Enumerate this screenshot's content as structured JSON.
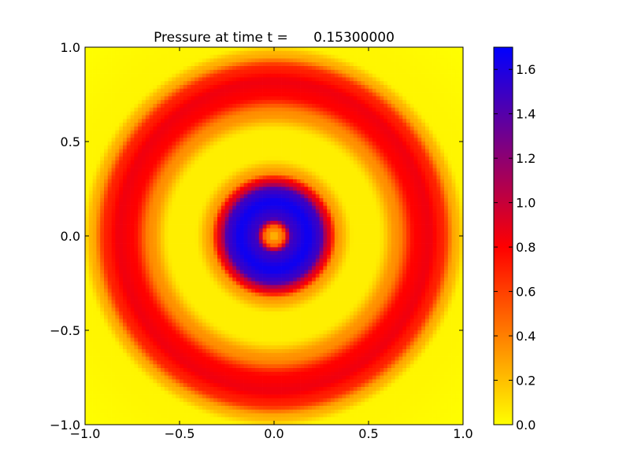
{
  "chart_data": {
    "type": "heatmap",
    "title": "Pressure at time t =      0.15300000",
    "xlabel": "",
    "ylabel": "",
    "xlim": [
      -1.0,
      1.0
    ],
    "ylim": [
      -1.0,
      1.0
    ],
    "x_ticks": [
      {
        "value": -1.0,
        "label": "−1.0"
      },
      {
        "value": -0.5,
        "label": "−0.5"
      },
      {
        "value": 0.0,
        "label": "0.0"
      },
      {
        "value": 0.5,
        "label": "0.5"
      },
      {
        "value": 1.0,
        "label": "1.0"
      }
    ],
    "y_ticks": [
      {
        "value": -1.0,
        "label": "−1.0"
      },
      {
        "value": -0.5,
        "label": "−0.5"
      },
      {
        "value": 0.0,
        "label": "0.0"
      },
      {
        "value": 0.5,
        "label": "0.5"
      },
      {
        "value": 1.0,
        "label": "1.0"
      }
    ],
    "grid": false,
    "grid_resolution": 100,
    "field": {
      "description_type": "radial",
      "radial_profile": [
        {
          "r": 0.0,
          "value": 0.2
        },
        {
          "r": 0.04,
          "value": 0.4
        },
        {
          "r": 0.1,
          "value": 1.5
        },
        {
          "r": 0.18,
          "value": 1.65
        },
        {
          "r": 0.24,
          "value": 1.5
        },
        {
          "r": 0.29,
          "value": 0.9
        },
        {
          "r": 0.34,
          "value": 0.3
        },
        {
          "r": 0.42,
          "value": 0.05
        },
        {
          "r": 0.55,
          "value": 0.05
        },
        {
          "r": 0.65,
          "value": 0.35
        },
        {
          "r": 0.75,
          "value": 0.8
        },
        {
          "r": 0.82,
          "value": 0.85
        },
        {
          "r": 0.89,
          "value": 0.7
        },
        {
          "r": 0.96,
          "value": 0.25
        },
        {
          "r": 1.02,
          "value": 0.03
        },
        {
          "r": 1.5,
          "value": 0.0
        }
      ]
    },
    "colorbar": {
      "range": [
        0.0,
        1.7
      ],
      "colors": [
        {
          "value": 0.0,
          "color": "#ffff00"
        },
        {
          "value": 0.8,
          "color": "#ff0000"
        },
        {
          "value": 1.7,
          "color": "#0000ff"
        }
      ],
      "ticks": [
        {
          "value": 0.0,
          "label": "0.0"
        },
        {
          "value": 0.2,
          "label": "0.2"
        },
        {
          "value": 0.4,
          "label": "0.4"
        },
        {
          "value": 0.6,
          "label": "0.6"
        },
        {
          "value": 0.8,
          "label": "0.8"
        },
        {
          "value": 1.0,
          "label": "1.0"
        },
        {
          "value": 1.2,
          "label": "1.2"
        },
        {
          "value": 1.4,
          "label": "1.4"
        },
        {
          "value": 1.6,
          "label": "1.6"
        }
      ]
    }
  }
}
